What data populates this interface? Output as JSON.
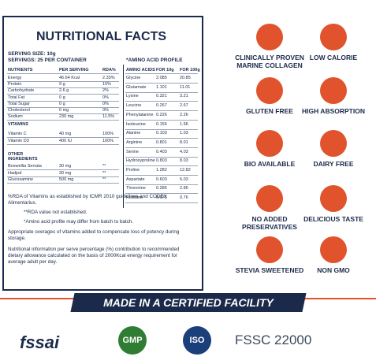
{
  "panel": {
    "title": "NUTRITIONAL FACTS",
    "serving_size": "SERVING SIZE: 10g",
    "servings": "SERVINGS: 25 PER CONTAINER",
    "nutrients": {
      "header": [
        "NUTRIENTS",
        "PER SERVING",
        "RDA%"
      ],
      "rows": [
        [
          "Energy",
          "46.64 Kcal",
          "2.33%"
        ],
        [
          "Protein",
          "9 g",
          "15%"
        ],
        [
          "Carbohydrate",
          "2.6 g",
          "2%"
        ],
        [
          "Total Fat",
          "0 g",
          "0%"
        ],
        [
          "Total Sugar",
          "0 g",
          "0%"
        ],
        [
          "Cholesterol",
          "0 mg",
          "0%"
        ],
        [
          "Sodium",
          "230 mg",
          "11.5%"
        ]
      ]
    },
    "vitamins": {
      "header": "VITAMINS",
      "rows": [
        [
          "Vitamin C",
          "40 mg",
          "100%"
        ],
        [
          "Vitamin D3",
          "400 IU",
          "100%"
        ]
      ]
    },
    "other": {
      "header": "OTHER INGREDIENTS",
      "rows": [
        [
          "Boswellia Serrata",
          "30 mg",
          "**"
        ],
        [
          "Hadjod",
          "30 mg",
          "**"
        ],
        [
          "Glucosamine",
          "500 mg",
          "**"
        ]
      ]
    },
    "amino": {
      "title": "*AMINO ACID PROFILE",
      "header": [
        "AMINO ACIDS",
        "FOR 10g",
        "FOR 100g"
      ],
      "rows": [
        [
          "Glycine",
          "2.085",
          "20.85"
        ],
        [
          "Glutamate",
          "1.101",
          "11.01"
        ],
        [
          "Lysine",
          "0.321",
          "3.21"
        ],
        [
          "Leucine",
          "0.267",
          "2.67"
        ],
        [
          "Phenylalanine",
          "0.226",
          "2.26"
        ],
        [
          "Isoleucine",
          "0.156",
          "1.56"
        ],
        [
          "Alanine",
          "0.103",
          "1.03"
        ],
        [
          "Arginine",
          "0.801",
          "8.01"
        ],
        [
          "Serine",
          "0.403",
          "4.03"
        ],
        [
          "Hydroxyproline",
          "0.803",
          "8.03"
        ],
        [
          "Proline",
          "1.282",
          "12.82"
        ],
        [
          "Aspartate",
          "0.603",
          "6.03"
        ],
        [
          "Threonine",
          "0.285",
          "2.85"
        ],
        [
          "Histidine",
          "0.076",
          "0.76"
        ]
      ]
    },
    "notes": [
      "%RDA of Vitamins as established by ICMR 2010 guidelines and CODEX Alimentarius.",
      "**RDA value not established.",
      "*Amino acid profile may differ from batch to batch.",
      "Appropriate overages of vitamins added to compensate loss of potency during storage.",
      "Nutritional information per serve percentage (%) contribution to recommended dietary allowance calculated on the basis of 2000Kcal energy requirement for average adult per day."
    ]
  },
  "badges": [
    "CLINICALLY PROVEN MARINE COLLAGEN",
    "LOW CALORIE",
    "GLUTEN FREE",
    "HIGH ABSORPTION",
    "BIO AVAILABLE",
    "DAIRY FREE",
    "NO ADDED PRESERVATIVES",
    "DELICIOUS TASTE",
    "STEVIA SWEETENED",
    "NON GMO"
  ],
  "banner": "MADE IN A CERTIFIED FACILITY",
  "certifications": [
    "fssai",
    "GMP",
    "ISO",
    "FSSC 22000"
  ]
}
